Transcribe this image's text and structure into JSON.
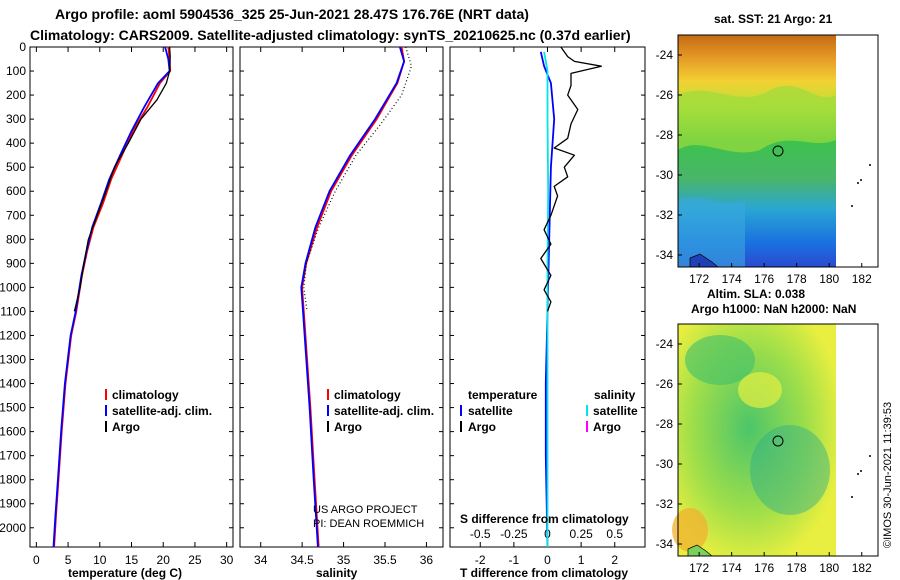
{
  "header": {
    "title1": "Argo profile: aoml 5904536_325 25-Jun-2021 28.47S 176.76E (NRT data)",
    "title2": "Climatology: CARS2009. Satellite-adjusted climatology: synTS_20210625.nc (0.37d earlier)"
  },
  "colors": {
    "climatology": "#ff0000",
    "satellite": "#0000ff",
    "argo": "#000000",
    "sal_satellite": "#00e5e5",
    "sal_argo": "#ff00ff"
  },
  "chart_data": [
    {
      "id": "temperature",
      "type": "line",
      "xlabel": "temperature (deg C)",
      "ylabel": "",
      "xlim": [
        -1,
        31
      ],
      "ylim": [
        2080,
        0
      ],
      "xticks": [
        0,
        5,
        10,
        15,
        20,
        25,
        30
      ],
      "yticks": [
        0,
        100,
        200,
        300,
        400,
        500,
        600,
        700,
        800,
        900,
        1000,
        1100,
        1200,
        1300,
        1400,
        1500,
        1600,
        1700,
        1800,
        1900,
        2000
      ],
      "legend": [
        "climatology",
        "satellite-adj. clim.",
        "Argo"
      ],
      "series": [
        {
          "name": "climatology",
          "style": "red",
          "points": [
            [
              20.8,
              0
            ],
            [
              21.0,
              50
            ],
            [
              21.1,
              100
            ],
            [
              19.5,
              150
            ],
            [
              17.5,
              250
            ],
            [
              15.2,
              350
            ],
            [
              13.5,
              450
            ],
            [
              11.8,
              550
            ],
            [
              10.5,
              650
            ],
            [
              9.0,
              750
            ],
            [
              8.0,
              850
            ],
            [
              7.2,
              950
            ],
            [
              6.3,
              1100
            ],
            [
              5.5,
              1200
            ],
            [
              4.6,
              1400
            ],
            [
              4.0,
              1600
            ],
            [
              3.5,
              1800
            ],
            [
              3.1,
              1950
            ],
            [
              2.8,
              2080
            ]
          ]
        },
        {
          "name": "satellite-adj. clim.",
          "style": "blue",
          "points": [
            [
              20.3,
              0
            ],
            [
              20.8,
              50
            ],
            [
              21.0,
              100
            ],
            [
              19.2,
              150
            ],
            [
              17.0,
              250
            ],
            [
              15.0,
              350
            ],
            [
              13.2,
              450
            ],
            [
              11.5,
              550
            ],
            [
              10.2,
              650
            ],
            [
              8.8,
              750
            ],
            [
              7.9,
              850
            ],
            [
              7.1,
              950
            ],
            [
              6.2,
              1100
            ],
            [
              5.4,
              1200
            ],
            [
              4.5,
              1400
            ],
            [
              3.9,
              1600
            ],
            [
              3.4,
              1800
            ],
            [
              3.0,
              1950
            ],
            [
              2.7,
              2080
            ]
          ]
        },
        {
          "name": "Argo",
          "style": "black",
          "points": [
            [
              21.0,
              0
            ],
            [
              21.1,
              40
            ],
            [
              21.0,
              100
            ],
            [
              20.5,
              150
            ],
            [
              19.0,
              220
            ],
            [
              16.5,
              300
            ],
            [
              14.5,
              400
            ],
            [
              12.3,
              500
            ],
            [
              11.0,
              600
            ],
            [
              9.6,
              700
            ],
            [
              8.2,
              800
            ],
            [
              7.5,
              900
            ],
            [
              6.9,
              1000
            ],
            [
              6.0,
              1100
            ]
          ]
        }
      ]
    },
    {
      "id": "salinity",
      "type": "line",
      "xlabel": "salinity",
      "ylabel": "",
      "xlim": [
        33.75,
        36.2
      ],
      "ylim": [
        2080,
        0
      ],
      "xticks": [
        34,
        34.5,
        35,
        35.5,
        36
      ],
      "legend": [
        "climatology",
        "satellite-adj. clim.",
        "Argo"
      ],
      "credit": [
        "US ARGO PROJECT",
        "PI: DEAN ROEMMICH"
      ],
      "series": [
        {
          "name": "climatology",
          "style": "red",
          "points": [
            [
              35.7,
              0
            ],
            [
              35.73,
              60
            ],
            [
              35.65,
              150
            ],
            [
              35.4,
              300
            ],
            [
              35.1,
              450
            ],
            [
              34.85,
              600
            ],
            [
              34.68,
              750
            ],
            [
              34.55,
              900
            ],
            [
              34.5,
              1000
            ],
            [
              34.52,
              1100
            ],
            [
              34.56,
              1300
            ],
            [
              34.6,
              1500
            ],
            [
              34.65,
              1800
            ],
            [
              34.7,
              2080
            ]
          ]
        },
        {
          "name": "satellite-adj. clim.",
          "style": "blue",
          "points": [
            [
              35.68,
              0
            ],
            [
              35.73,
              60
            ],
            [
              35.64,
              150
            ],
            [
              35.38,
              300
            ],
            [
              35.08,
              450
            ],
            [
              34.83,
              600
            ],
            [
              34.66,
              750
            ],
            [
              34.54,
              900
            ],
            [
              34.49,
              1000
            ],
            [
              34.51,
              1100
            ],
            [
              34.55,
              1300
            ],
            [
              34.59,
              1500
            ],
            [
              34.64,
              1800
            ],
            [
              34.69,
              2080
            ]
          ]
        },
        {
          "name": "Argo",
          "style": "dotted",
          "points": [
            [
              35.75,
              0
            ],
            [
              35.82,
              80
            ],
            [
              35.7,
              200
            ],
            [
              35.45,
              320
            ],
            [
              35.15,
              450
            ],
            [
              34.9,
              600
            ],
            [
              34.7,
              750
            ],
            [
              34.55,
              900
            ],
            [
              34.52,
              1000
            ],
            [
              34.56,
              1100
            ]
          ]
        }
      ]
    },
    {
      "id": "difference",
      "type": "line",
      "xlabel": "T difference from climatology",
      "xlabel2": "S difference from climatology",
      "xlim": [
        -2.9,
        2.9
      ],
      "ylim": [
        2080,
        0
      ],
      "xticks": [
        -2,
        -1,
        0,
        1,
        2
      ],
      "xticks2": [
        "-0.5",
        "-0.25",
        "0",
        "0.25",
        "0.5"
      ],
      "legend_left_title": "temperature",
      "legend_right_title": "salinity",
      "legend_left": [
        "satellite",
        "Argo"
      ],
      "legend_right": [
        "satellite",
        "Argo"
      ],
      "series": [
        {
          "name": "T satellite",
          "style": "blue",
          "points": [
            [
              -0.2,
              20
            ],
            [
              -0.1,
              80
            ],
            [
              0.1,
              150
            ],
            [
              0.2,
              300
            ],
            [
              0.1,
              500
            ],
            [
              0.05,
              800
            ],
            [
              0,
              1100
            ],
            [
              -0.05,
              1400
            ],
            [
              -0.05,
              1700
            ],
            [
              0,
              2080
            ]
          ]
        },
        {
          "name": "S satellite",
          "style": "cyan",
          "points": [
            [
              -0.1,
              20
            ],
            [
              0,
              100
            ],
            [
              0,
              300
            ],
            [
              0.02,
              600
            ],
            [
              0,
              900
            ],
            [
              0,
              1200
            ],
            [
              0,
              1500
            ],
            [
              0,
              1800
            ],
            [
              0,
              2080
            ]
          ]
        },
        {
          "name": "T Argo",
          "style": "black",
          "points": [
            [
              0.4,
              0
            ],
            [
              0.6,
              40
            ],
            [
              0.8,
              60
            ],
            [
              1.6,
              80
            ],
            [
              0.7,
              110
            ],
            [
              0.7,
              160
            ],
            [
              0.6,
              200
            ],
            [
              0.9,
              260
            ],
            [
              0.7,
              320
            ],
            [
              0.6,
              380
            ],
            [
              0.2,
              420
            ],
            [
              0.8,
              450
            ],
            [
              0.5,
              500
            ],
            [
              0.6,
              540
            ],
            [
              0.2,
              580
            ],
            [
              0.3,
              620
            ],
            [
              0.1,
              700
            ],
            [
              -0.1,
              760
            ],
            [
              0.1,
              820
            ],
            [
              -0.2,
              880
            ],
            [
              0.1,
              950
            ],
            [
              -0.1,
              1010
            ],
            [
              0.1,
              1060
            ],
            [
              0,
              1100
            ]
          ]
        }
      ]
    }
  ],
  "maps": [
    {
      "title": "sat. SST: 21  Argo: 21",
      "yticks": [
        "-24",
        "-26",
        "-28",
        "-30",
        "-32",
        "-34"
      ],
      "xticks": [
        "172",
        "174",
        "176",
        "178",
        "180",
        "182"
      ],
      "profile_lon": 176.8,
      "profile_lat": -28.5
    },
    {
      "title": "Altim. SLA: 0.038",
      "title2": "Argo h1000: NaN h2000: NaN",
      "yticks": [
        "-24",
        "-26",
        "-28",
        "-30",
        "-32",
        "-34"
      ],
      "xticks": [
        "172",
        "174",
        "176",
        "178",
        "180",
        "182"
      ],
      "profile_lon": 176.8,
      "profile_lat": -28.5
    }
  ],
  "watermark": "©IMOS 30-Jun-2021 11:39:53"
}
